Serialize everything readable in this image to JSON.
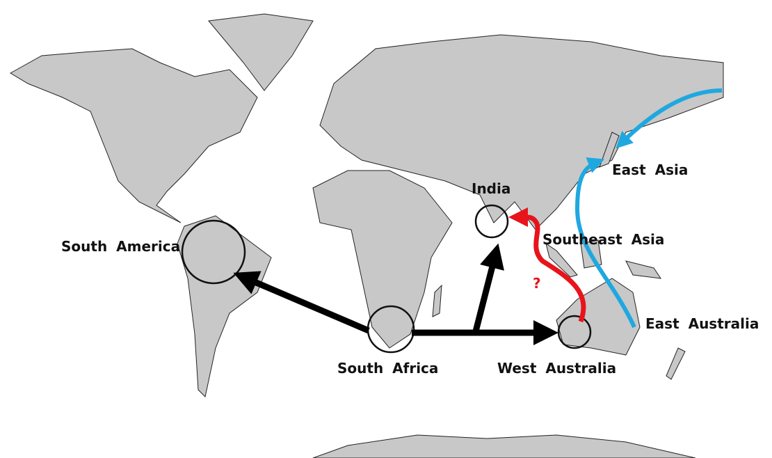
{
  "labels": {
    "south_america": "South America",
    "south_africa": "South Africa",
    "india": "India",
    "west_australia": "West Australia",
    "east_asia": "East Asia",
    "southeast_asia": "Southeast Asia",
    "east_australia": "East Australia",
    "question": "?"
  }
}
